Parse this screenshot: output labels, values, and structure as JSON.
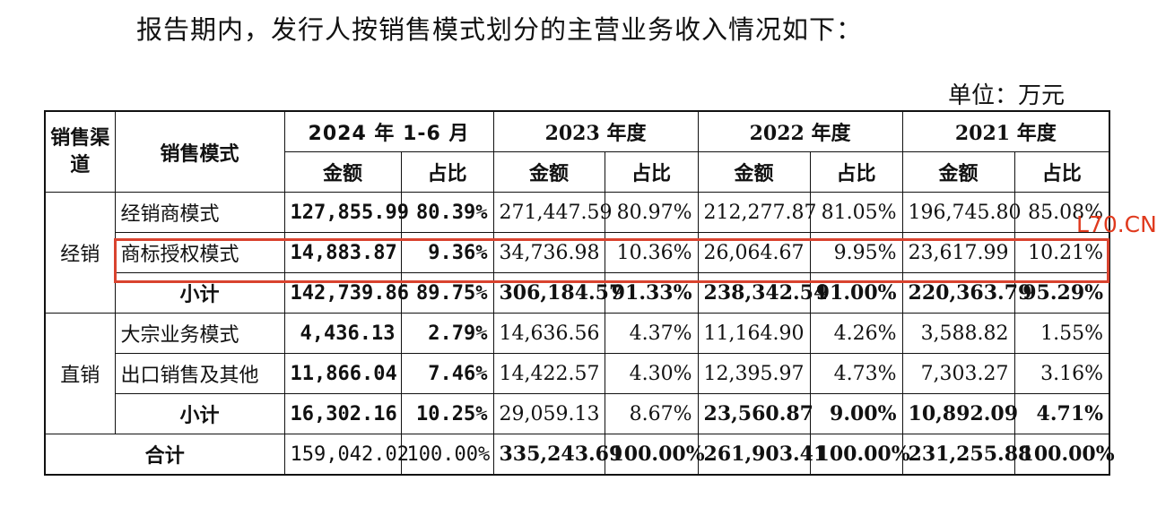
{
  "intro_text": "报告期内，发行人按销售模式划分的主营业务收入情况如下：",
  "unit_label": "单位：万元",
  "watermark": "L70.CN",
  "header": {
    "channel": "销售渠道",
    "mode": "销售模式",
    "periods": [
      "2024 年 1-6 月",
      "2023 年度",
      "2022 年度",
      "2021 年度"
    ],
    "amount": "金额",
    "ratio": "占比"
  },
  "groups": {
    "distribution": {
      "label": "经销",
      "rows": [
        {
          "mode": "经销商模式",
          "v": [
            "127,855.99",
            "80.39%",
            "271,447.59",
            "80.97%",
            "212,277.87",
            "81.05%",
            "196,745.80",
            "85.08%"
          ]
        },
        {
          "mode": "商标授权模式",
          "v": [
            "14,883.87",
            "9.36%",
            "34,736.98",
            "10.36%",
            "26,064.67",
            "9.95%",
            "23,617.99",
            "10.21%"
          ]
        }
      ],
      "subtotal": {
        "label": "小计",
        "v": [
          "142,739.86",
          "89.75%",
          "306,184.57",
          "91.33%",
          "238,342.54",
          "91.00%",
          "220,363.79",
          "95.29%"
        ]
      }
    },
    "direct": {
      "label": "直销",
      "rows": [
        {
          "mode": "大宗业务模式",
          "v": [
            "4,436.13",
            "2.79%",
            "14,636.56",
            "4.37%",
            "11,164.90",
            "4.26%",
            "3,588.82",
            "1.55%"
          ]
        },
        {
          "mode": "出口销售及其他",
          "v": [
            "11,866.04",
            "7.46%",
            "14,422.57",
            "4.30%",
            "12,395.97",
            "4.73%",
            "7,303.27",
            "3.16%"
          ]
        }
      ],
      "subtotal": {
        "label": "小计",
        "v": [
          "16,302.16",
          "10.25%",
          "29,059.13",
          "8.67%",
          "23,560.87",
          "9.00%",
          "10,892.09",
          "4.71%"
        ]
      }
    }
  },
  "total": {
    "label": "合计",
    "v": [
      "159,042.02",
      "100.00%",
      "335,243.69",
      "100.00%",
      "261,903.41",
      "100.00%",
      "231,255.88",
      "100.00%"
    ]
  },
  "highlight_color": "#d9432f",
  "watermark_color": "#e03a1e"
}
